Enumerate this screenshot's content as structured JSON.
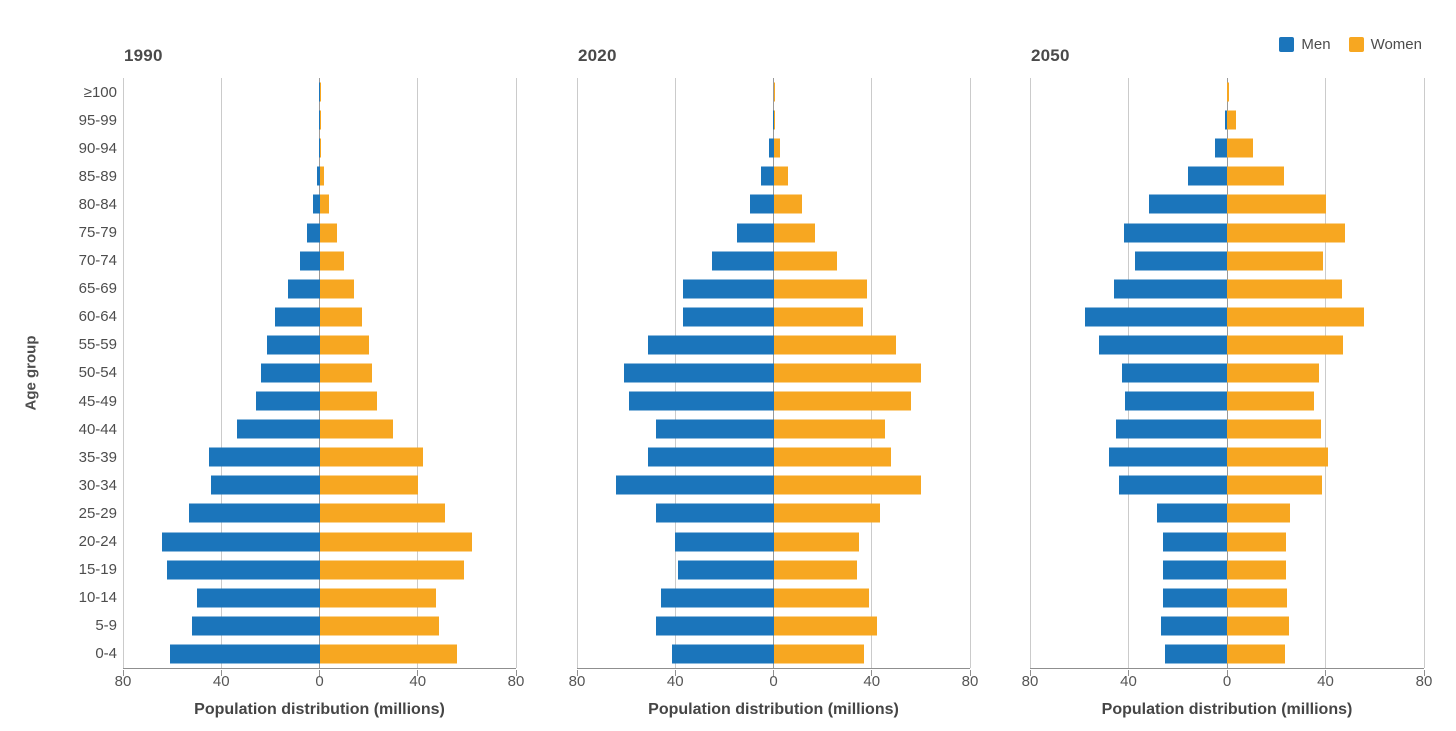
{
  "colors": {
    "men": "#1b75bb",
    "women": "#f7a721",
    "gridline": "#cbcbcb",
    "zero_line": "#999999",
    "axis_line": "#8f8f8f",
    "text": "#4d4d4d"
  },
  "legend": {
    "items": [
      {
        "label": "Men",
        "color_key": "men"
      },
      {
        "label": "Women",
        "color_key": "women"
      }
    ]
  },
  "axis": {
    "y_label": "Age group"
  },
  "chart_data": [
    {
      "type": "bar",
      "subtype": "population-pyramid",
      "title": "1990",
      "xlabel": "Population distribution (millions)",
      "ylabel": "Age group",
      "x_max": 80,
      "x_ticks": [
        "80",
        "40",
        "0",
        "40",
        "80"
      ],
      "xlim": [
        -80,
        80
      ],
      "grid": true,
      "legend_position": "top-right",
      "categories": [
        "≥100",
        "95-99",
        "90-94",
        "85-89",
        "80-84",
        "75-79",
        "70-74",
        "65-69",
        "60-64",
        "55-59",
        "50-54",
        "45-49",
        "40-44",
        "35-39",
        "30-34",
        "25-29",
        "20-24",
        "15-19",
        "10-14",
        "5-9",
        "0-4"
      ],
      "series": [
        {
          "name": "Men",
          "side": "left",
          "color_key": "men",
          "values": [
            0.1,
            0.1,
            0.2,
            1,
            2.5,
            5,
            8,
            13,
            18,
            21.5,
            24,
            26,
            33.5,
            45,
            44,
            53,
            64,
            62,
            50,
            52,
            61
          ]
        },
        {
          "name": "Women",
          "side": "right",
          "color_key": "women",
          "values": [
            0.1,
            0.2,
            0.8,
            2,
            4,
            7,
            10,
            14,
            17.5,
            20,
            21.5,
            23.5,
            30,
            42,
            40,
            51,
            62,
            59,
            47.5,
            48.5,
            56
          ]
        }
      ]
    },
    {
      "type": "bar",
      "subtype": "population-pyramid",
      "title": "2020",
      "xlabel": "Population distribution (millions)",
      "ylabel": "Age group",
      "x_max": 80,
      "x_ticks": [
        "80",
        "40",
        "0",
        "40",
        "80"
      ],
      "xlim": [
        -80,
        80
      ],
      "grid": true,
      "categories": [
        "≥100",
        "95-99",
        "90-94",
        "85-89",
        "80-84",
        "75-79",
        "70-74",
        "65-69",
        "60-64",
        "55-59",
        "50-54",
        "45-49",
        "40-44",
        "35-39",
        "30-34",
        "25-29",
        "20-24",
        "15-19",
        "10-14",
        "5-9",
        "0-4"
      ],
      "series": [
        {
          "name": "Men",
          "side": "left",
          "color_key": "men",
          "values": [
            0,
            0.2,
            2,
            5,
            9.5,
            15,
            25,
            37,
            37,
            51,
            61,
            59,
            48,
            51,
            64,
            48,
            40,
            39,
            46,
            48,
            41.5
          ]
        },
        {
          "name": "Women",
          "side": "right",
          "color_key": "women",
          "values": [
            0.1,
            0.5,
            2.5,
            6,
            11.5,
            17,
            26,
            38,
            36.5,
            50,
            60,
            56,
            45.5,
            48,
            60,
            43.5,
            35,
            34,
            39,
            42,
            37
          ]
        }
      ]
    },
    {
      "type": "bar",
      "subtype": "population-pyramid",
      "title": "2050",
      "xlabel": "Population distribution (millions)",
      "ylabel": "Age group",
      "x_max": 80,
      "x_ticks": [
        "80",
        "40",
        "0",
        "40",
        "80"
      ],
      "xlim": [
        -80,
        80
      ],
      "grid": true,
      "categories": [
        "≥100",
        "95-99",
        "90-94",
        "85-89",
        "80-84",
        "75-79",
        "70-74",
        "65-69",
        "60-64",
        "55-59",
        "50-54",
        "45-49",
        "40-44",
        "35-39",
        "30-34",
        "25-29",
        "20-24",
        "15-19",
        "10-14",
        "5-9",
        "0-4"
      ],
      "series": [
        {
          "name": "Men",
          "side": "left",
          "color_key": "men",
          "values": [
            0.1,
            1,
            5,
            16,
            31.5,
            42,
            37.5,
            46,
            57.5,
            52,
            42.5,
            41.5,
            45,
            48,
            44,
            28.5,
            26,
            26,
            26,
            27,
            25
          ]
        },
        {
          "name": "Women",
          "side": "right",
          "color_key": "women",
          "values": [
            0.7,
            3.5,
            10.5,
            23,
            40,
            48,
            39,
            46.5,
            55.5,
            47,
            37.5,
            35.5,
            38,
            41,
            38.5,
            25.5,
            24,
            24,
            24.5,
            25,
            23.5
          ]
        }
      ]
    }
  ]
}
